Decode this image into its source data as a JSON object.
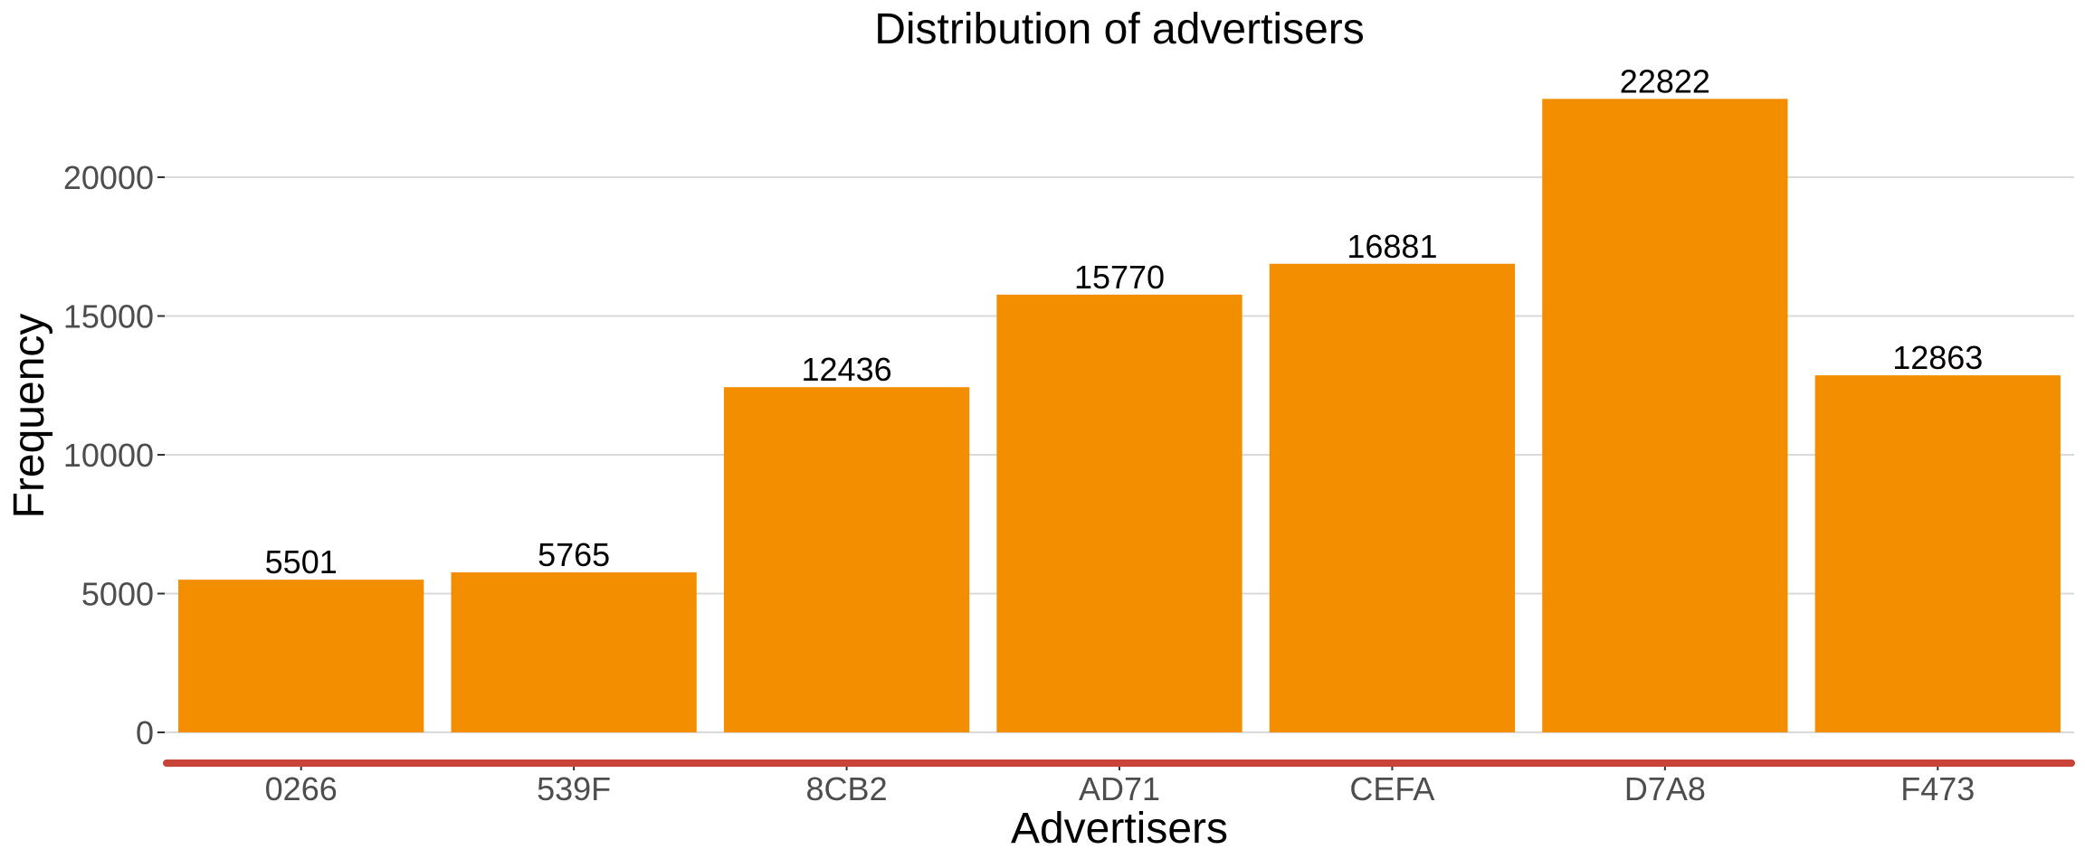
{
  "chart_data": {
    "type": "bar",
    "title": "Distribution of advertisers",
    "xlabel": "Advertisers",
    "ylabel": "Frequency",
    "categories": [
      "0266",
      "539F",
      "8CB2",
      "AD71",
      "CEFA",
      "D7A8",
      "F473"
    ],
    "values": [
      5501,
      5765,
      12436,
      15770,
      16881,
      22822,
      12863
    ],
    "value_labels": [
      "5501",
      "5765",
      "12436",
      "15770",
      "16881",
      "22822",
      "12863"
    ],
    "ylim": [
      0,
      22822
    ],
    "yticks": [
      0,
      5000,
      10000,
      15000,
      20000
    ],
    "ytick_labels": [
      "0",
      "5000",
      "10000",
      "15000",
      "20000"
    ],
    "grid": "horizontal major",
    "legend": "none",
    "colors": {
      "bar": "#F28E00",
      "x_axis_line": "#C8443A",
      "grid": "#d9d9d9",
      "tick_text": "#4d4d4d"
    }
  }
}
